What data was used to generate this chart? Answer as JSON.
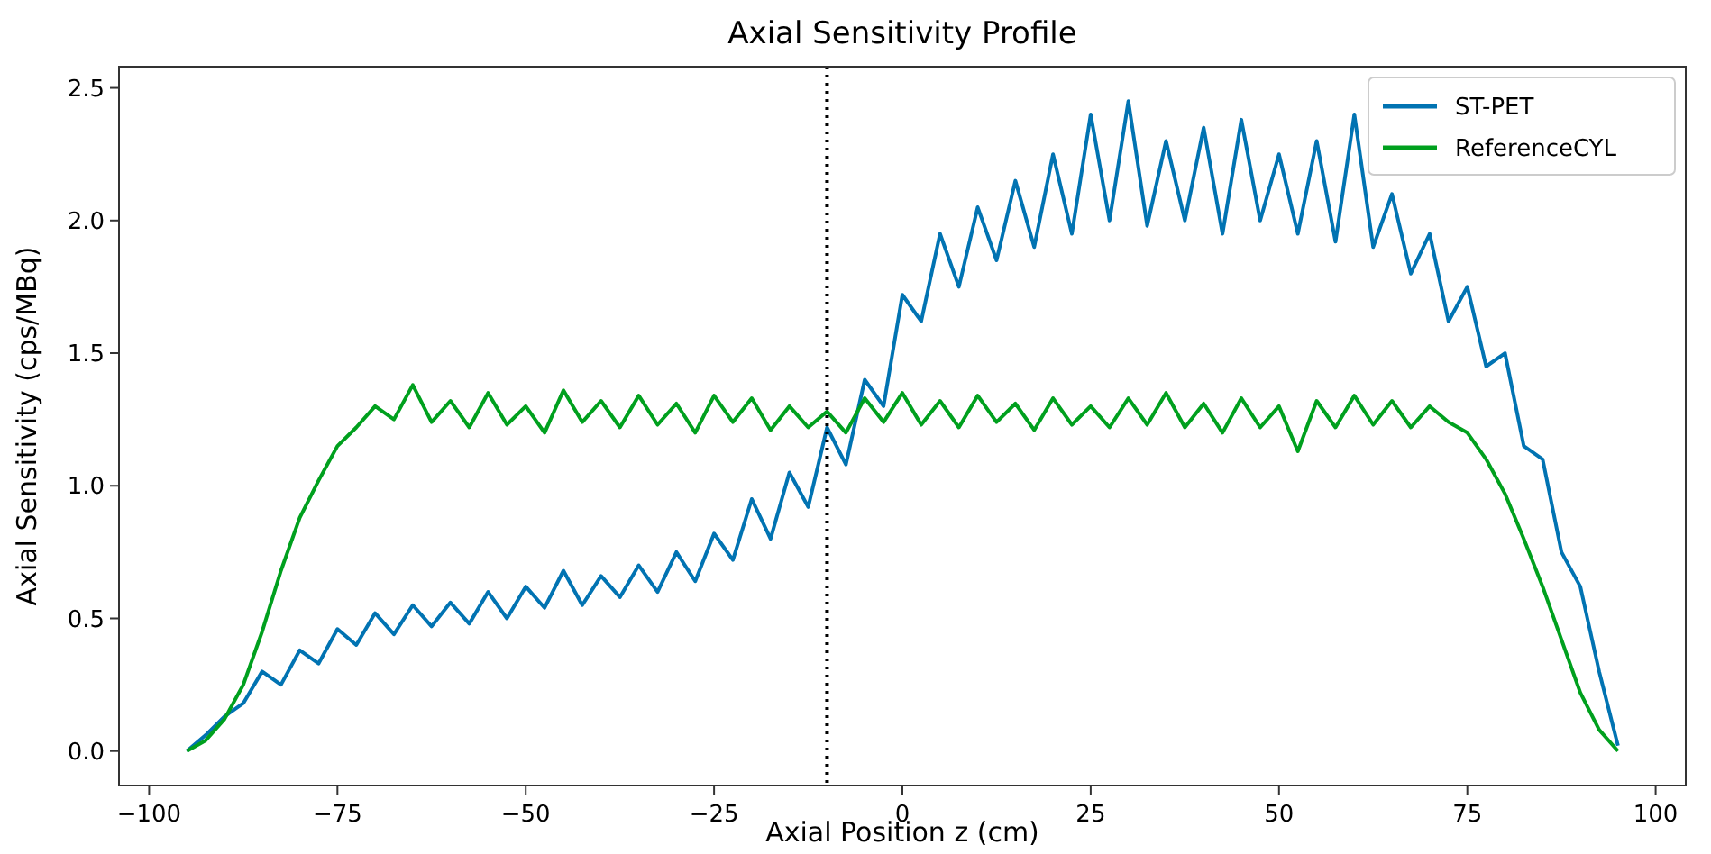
{
  "chart_data": {
    "type": "line",
    "title": "Axial Sensitivity Profile",
    "xlabel": "Axial Position z (cm)",
    "ylabel": "Axial Sensitivity (cps/MBq)",
    "xlim": [
      -104,
      104
    ],
    "ylim": [
      -0.13,
      2.58
    ],
    "xticks": [
      -100,
      -75,
      -50,
      -25,
      0,
      25,
      50,
      75,
      100
    ],
    "yticks": [
      {
        "value": 0,
        "label": "0.0"
      },
      0.5,
      {
        "value": 1,
        "label": "1.0"
      },
      1.5,
      {
        "value": 2,
        "label": "2.0"
      },
      2.5
    ],
    "grid": false,
    "legend": "top right",
    "line_style": "solid",
    "marker": "none",
    "ref_lines": [
      {
        "axis": "x",
        "value": -10,
        "color": "#000000",
        "line_style": "dotted"
      }
    ],
    "series": [
      {
        "name": "ST-PET",
        "color": "#0173b2",
        "x": [
          -95,
          -92.5,
          -90,
          -87.5,
          -85,
          -82.5,
          -80,
          -77.5,
          -75,
          -72.5,
          -70,
          -67.5,
          -65,
          -62.5,
          -60,
          -57.5,
          -55,
          -52.5,
          -50,
          -47.5,
          -45,
          -42.5,
          -40,
          -37.5,
          -35,
          -32.5,
          -30,
          -27.5,
          -25,
          -22.5,
          -20,
          -17.5,
          -15,
          -12.5,
          -10,
          -7.5,
          -5,
          -2.5,
          0,
          2.5,
          5,
          7.5,
          10,
          12.5,
          15,
          17.5,
          20,
          22.5,
          25,
          27.5,
          30,
          32.5,
          35,
          37.5,
          40,
          42.5,
          45,
          47.5,
          50,
          52.5,
          55,
          57.5,
          60,
          62.5,
          65,
          67.5,
          70,
          72.5,
          75,
          77.5,
          80,
          82.5,
          85,
          87.5,
          90,
          92.5,
          95
        ],
        "values": [
          0.0,
          0.06,
          0.13,
          0.18,
          0.3,
          0.25,
          0.38,
          0.33,
          0.46,
          0.4,
          0.52,
          0.44,
          0.55,
          0.47,
          0.56,
          0.48,
          0.6,
          0.5,
          0.62,
          0.54,
          0.68,
          0.55,
          0.66,
          0.58,
          0.7,
          0.6,
          0.75,
          0.64,
          0.82,
          0.72,
          0.95,
          0.8,
          1.05,
          0.92,
          1.22,
          1.08,
          1.4,
          1.3,
          1.72,
          1.62,
          1.95,
          1.75,
          2.05,
          1.85,
          2.15,
          1.9,
          2.25,
          1.95,
          2.4,
          2.0,
          2.45,
          1.98,
          2.3,
          2.0,
          2.35,
          1.95,
          2.38,
          2.0,
          2.25,
          1.95,
          2.3,
          1.92,
          2.4,
          1.9,
          2.1,
          1.8,
          1.95,
          1.62,
          1.75,
          1.45,
          1.5,
          1.15,
          1.1,
          0.75,
          0.62,
          0.3,
          0.02
        ]
      },
      {
        "name": "ReferenceCYL",
        "color": "#00a01e",
        "x": [
          -95,
          -92.5,
          -90,
          -87.5,
          -85,
          -82.5,
          -80,
          -77.5,
          -75,
          -72.5,
          -70,
          -67.5,
          -65,
          -62.5,
          -60,
          -57.5,
          -55,
          -52.5,
          -50,
          -47.5,
          -45,
          -42.5,
          -40,
          -37.5,
          -35,
          -32.5,
          -30,
          -27.5,
          -25,
          -22.5,
          -20,
          -17.5,
          -15,
          -12.5,
          -10,
          -7.5,
          -5,
          -2.5,
          0,
          2.5,
          5,
          7.5,
          10,
          12.5,
          15,
          17.5,
          20,
          22.5,
          25,
          27.5,
          30,
          32.5,
          35,
          37.5,
          40,
          42.5,
          45,
          47.5,
          50,
          52.5,
          55,
          57.5,
          60,
          62.5,
          65,
          67.5,
          70,
          72.5,
          75,
          77.5,
          80,
          82.5,
          85,
          87.5,
          90,
          92.5,
          95
        ],
        "values": [
          0.0,
          0.04,
          0.12,
          0.25,
          0.45,
          0.68,
          0.88,
          1.02,
          1.15,
          1.22,
          1.3,
          1.25,
          1.38,
          1.24,
          1.32,
          1.22,
          1.35,
          1.23,
          1.3,
          1.2,
          1.36,
          1.24,
          1.32,
          1.22,
          1.34,
          1.23,
          1.31,
          1.2,
          1.34,
          1.24,
          1.33,
          1.21,
          1.3,
          1.22,
          1.28,
          1.2,
          1.33,
          1.24,
          1.35,
          1.23,
          1.32,
          1.22,
          1.34,
          1.24,
          1.31,
          1.21,
          1.33,
          1.23,
          1.3,
          1.22,
          1.33,
          1.23,
          1.35,
          1.22,
          1.31,
          1.2,
          1.33,
          1.22,
          1.3,
          1.13,
          1.32,
          1.22,
          1.34,
          1.23,
          1.32,
          1.22,
          1.3,
          1.24,
          1.2,
          1.1,
          0.97,
          0.8,
          0.62,
          0.42,
          0.22,
          0.08,
          0.0
        ]
      }
    ]
  }
}
